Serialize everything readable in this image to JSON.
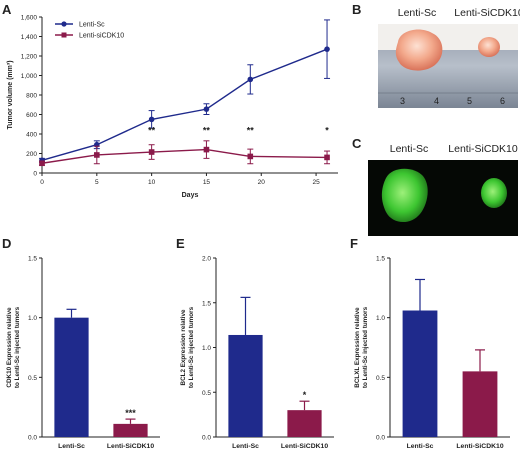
{
  "panels": {
    "A": "A",
    "B": "B",
    "C": "C",
    "D": "D",
    "E": "E",
    "F": "F"
  },
  "photo_labels": {
    "b_left": "Lenti-Sc",
    "b_right": "Lenti-SiCDK10",
    "c_left": "Lenti-Sc",
    "c_right": "Lenti-SiCDK10",
    "ruler_marks": [
      "3",
      "4",
      "5",
      "6"
    ]
  },
  "colors": {
    "sc": "#1f2a8c",
    "si": "#8b1a4a"
  },
  "chart_data": [
    {
      "id": "A",
      "type": "line",
      "xlabel": "Days",
      "ylabel": "Tumor volume (mm³)",
      "xlim": [
        0,
        27
      ],
      "ylim": [
        0,
        1600
      ],
      "xticks": [
        "0",
        "5",
        "10",
        "15",
        "20",
        "25"
      ],
      "yticks": [
        "0",
        "200",
        "400",
        "600",
        "800",
        "1,000",
        "1,200",
        "1,400",
        "1,600"
      ],
      "legend": "top-left",
      "series": [
        {
          "name": "Lenti-Sc",
          "marker": "circle",
          "x": [
            0,
            5,
            10,
            15,
            19,
            26
          ],
          "y": [
            130,
            290,
            550,
            655,
            960,
            1270
          ],
          "err": [
            20,
            40,
            90,
            55,
            150,
            300
          ]
        },
        {
          "name": "Lenti-siCDK10",
          "marker": "square",
          "x": [
            0,
            5,
            10,
            15,
            19,
            26
          ],
          "y": [
            100,
            185,
            215,
            240,
            170,
            160
          ],
          "err": [
            20,
            90,
            75,
            90,
            75,
            65
          ]
        }
      ],
      "annotations": [
        {
          "x": 10,
          "text": "**"
        },
        {
          "x": 15,
          "text": "**"
        },
        {
          "x": 19,
          "text": "**"
        },
        {
          "x": 26,
          "text": "*"
        }
      ]
    },
    {
      "id": "D",
      "type": "bar",
      "ylabel": "CDK10 Expression relative to Lenti-Sc injected tumors",
      "ylim": [
        0,
        1.5
      ],
      "yticks": [
        "0.0",
        "0.5",
        "1.0",
        "1.5"
      ],
      "categories": [
        "Lenti-Sc",
        "Lenti-SiCDK10"
      ],
      "values": [
        1.0,
        0.11
      ],
      "err": [
        0.07,
        0.04
      ],
      "sig": [
        "",
        "***"
      ]
    },
    {
      "id": "E",
      "type": "bar",
      "ylabel": "BCL2 Expression relative to Lenti-Sc injected tumors",
      "ylim": [
        0,
        2.0
      ],
      "yticks": [
        "0.0",
        "0.5",
        "1.0",
        "1.5",
        "2.0"
      ],
      "categories": [
        "Lenti-Sc",
        "Lenti-SiCDK10"
      ],
      "values": [
        1.14,
        0.3
      ],
      "err": [
        0.42,
        0.1
      ],
      "sig": [
        "",
        "*"
      ]
    },
    {
      "id": "F",
      "type": "bar",
      "ylabel": "BCLXL Expression relative to Lenti-Sc injected tumors",
      "ylim": [
        0,
        1.5
      ],
      "yticks": [
        "0.0",
        "0.5",
        "1.0",
        "1.5"
      ],
      "categories": [
        "Lenti-Sc",
        "Lenti-SiCDK10"
      ],
      "values": [
        1.06,
        0.55
      ],
      "err": [
        0.26,
        0.18
      ],
      "sig": [
        "",
        ""
      ]
    }
  ]
}
